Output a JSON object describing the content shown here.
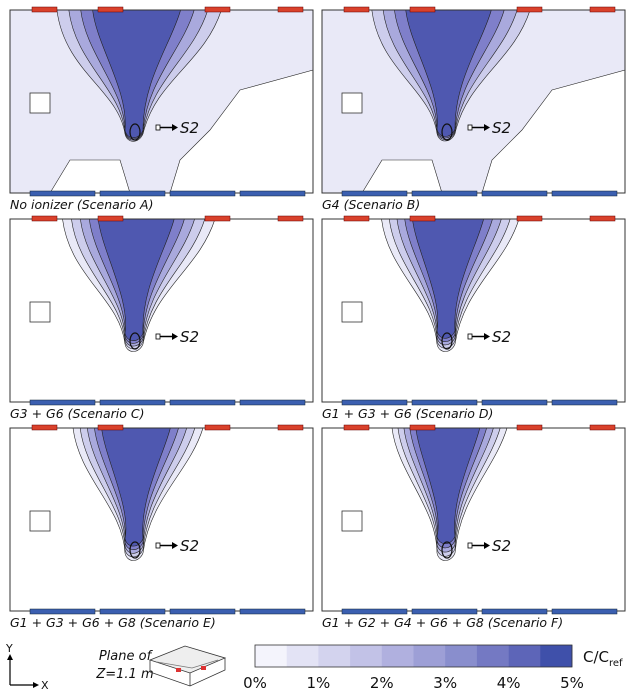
{
  "panels": [
    {
      "caption": "No ionizer (Scenario A)",
      "source": "S2"
    },
    {
      "caption": "G4 (Scenario B)",
      "source": "S2"
    },
    {
      "caption": "G3 + G6 (Scenario C)",
      "source": "S2"
    },
    {
      "caption": "G1 + G3 + G6 (Scenario D)",
      "source": "S2"
    },
    {
      "caption": "G1 + G3 + G6 + G8 (Scenario E)",
      "source": "S2"
    },
    {
      "caption": "G1 + G2 + G4 + G6 + G8 (Scenario F)",
      "source": "S2"
    }
  ],
  "legend": {
    "plane": [
      "Plane of",
      "Z=1.1 m"
    ],
    "axes": {
      "y": "Y",
      "x": "X"
    },
    "colorbar": {
      "label": "C/C",
      "label_sub": "ref",
      "ticks": [
        "0%",
        "1%",
        "2%",
        "3%",
        "4%",
        "5%"
      ]
    }
  }
}
